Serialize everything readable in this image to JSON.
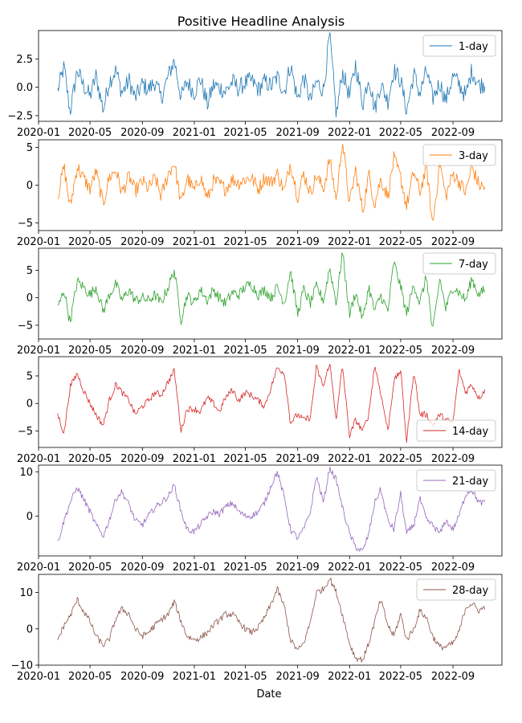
{
  "chart_data": {
    "type": "line",
    "title": "Positive Headline Analysis",
    "xlabel": "Date",
    "x_start": "2020-02-15",
    "x_end": "2022-11-15",
    "x_ticks": [
      "2020-01",
      "2020-05",
      "2020-09",
      "2021-01",
      "2021-05",
      "2021-09",
      "2022-01",
      "2022-05",
      "2022-09"
    ],
    "panels": [
      {
        "name": "1-day",
        "color": "#1f77b4",
        "ylim": [
          -3.0,
          5.0
        ],
        "y_ticks": [
          -2.5,
          0.0,
          2.5
        ],
        "y_tick_labels": [
          "−2.5",
          "0.0",
          "2.5"
        ],
        "legend": "top-right",
        "x": [
          "2020-02-15",
          "2020-03-01",
          "2020-03-15",
          "2020-04-01",
          "2020-04-15",
          "2020-05-01",
          "2020-05-15",
          "2020-06-01",
          "2020-06-15",
          "2020-07-01",
          "2020-07-15",
          "2020-08-01",
          "2020-08-15",
          "2020-09-01",
          "2020-09-15",
          "2020-10-01",
          "2020-10-15",
          "2020-11-01",
          "2020-11-15",
          "2020-12-01",
          "2020-12-15",
          "2021-01-01",
          "2021-01-15",
          "2021-02-01",
          "2021-02-15",
          "2021-03-01",
          "2021-03-15",
          "2021-04-01",
          "2021-04-15",
          "2021-05-01",
          "2021-05-15",
          "2021-06-01",
          "2021-06-15",
          "2021-07-01",
          "2021-07-15",
          "2021-08-01",
          "2021-08-15",
          "2021-09-01",
          "2021-09-15",
          "2021-10-01",
          "2021-10-15",
          "2021-11-01",
          "2021-11-15",
          "2021-12-01",
          "2021-12-15",
          "2022-01-01",
          "2022-01-15",
          "2022-02-01",
          "2022-02-15",
          "2022-03-01",
          "2022-03-15",
          "2022-04-01",
          "2022-04-15",
          "2022-05-01",
          "2022-05-15",
          "2022-06-01",
          "2022-06-15",
          "2022-07-01",
          "2022-07-15",
          "2022-08-01",
          "2022-08-15",
          "2022-09-01",
          "2022-09-15",
          "2022-10-01",
          "2022-10-15",
          "2022-11-01",
          "2022-11-15"
        ],
        "values": [
          -0.3,
          1.8,
          -2.2,
          1.5,
          0.2,
          -0.8,
          1.0,
          -2.0,
          0.5,
          1.5,
          -0.5,
          0.6,
          -1.0,
          0.3,
          -0.2,
          0.5,
          -1.0,
          1.0,
          2.4,
          -0.9,
          0.5,
          -0.5,
          0.8,
          -1.5,
          0.2,
          0.0,
          -0.4,
          0.5,
          -0.1,
          0.4,
          0.6,
          -0.2,
          0.5,
          0.1,
          0.9,
          -0.4,
          2.0,
          -1.1,
          0.9,
          -1.2,
          0.5,
          -0.3,
          4.7,
          -2.5,
          1.4,
          -0.8,
          2.0,
          -1.5,
          1.0,
          -2.0,
          0.3,
          -1.2,
          1.5,
          0.6,
          -2.1,
          1.2,
          -0.6,
          1.5,
          -1.0,
          0.4,
          -1.2,
          1.0,
          0.3,
          -0.8,
          1.5,
          0.2,
          0.3
        ]
      },
      {
        "name": "3-day",
        "color": "#ff7f0e",
        "ylim": [
          -6.0,
          6.0
        ],
        "y_ticks": [
          -5,
          0,
          5
        ],
        "y_tick_labels": [
          "−5",
          "0",
          "5"
        ],
        "legend": "top-right",
        "x": [
          "2020-02-15",
          "2020-03-01",
          "2020-03-15",
          "2020-04-01",
          "2020-04-15",
          "2020-05-01",
          "2020-05-15",
          "2020-06-01",
          "2020-06-15",
          "2020-07-01",
          "2020-07-15",
          "2020-08-01",
          "2020-08-15",
          "2020-09-01",
          "2020-09-15",
          "2020-10-01",
          "2020-10-15",
          "2020-11-01",
          "2020-11-15",
          "2020-12-01",
          "2020-12-15",
          "2021-01-01",
          "2021-01-15",
          "2021-02-01",
          "2021-02-15",
          "2021-03-01",
          "2021-03-15",
          "2021-04-01",
          "2021-04-15",
          "2021-05-01",
          "2021-05-15",
          "2021-06-01",
          "2021-06-15",
          "2021-07-01",
          "2021-07-15",
          "2021-08-01",
          "2021-08-15",
          "2021-09-01",
          "2021-09-15",
          "2021-10-01",
          "2021-10-15",
          "2021-11-01",
          "2021-11-15",
          "2021-12-01",
          "2021-12-15",
          "2022-01-01",
          "2022-01-15",
          "2022-02-01",
          "2022-02-15",
          "2022-03-01",
          "2022-03-15",
          "2022-04-01",
          "2022-04-15",
          "2022-05-01",
          "2022-05-15",
          "2022-06-01",
          "2022-06-15",
          "2022-07-01",
          "2022-07-15",
          "2022-08-01",
          "2022-08-15",
          "2022-09-01",
          "2022-09-15",
          "2022-10-01",
          "2022-10-15",
          "2022-11-01",
          "2022-11-15"
        ],
        "values": [
          -1.5,
          2.5,
          -3.0,
          2.5,
          1.0,
          -0.5,
          1.8,
          -2.5,
          1.0,
          2.0,
          -1.0,
          1.2,
          -0.8,
          0.5,
          -0.5,
          1.0,
          -1.5,
          1.5,
          3.0,
          -2.5,
          1.0,
          -0.8,
          1.2,
          -1.8,
          0.5,
          0.2,
          -0.5,
          0.8,
          0.3,
          0.8,
          1.0,
          -0.5,
          1.0,
          0.4,
          1.5,
          -0.8,
          3.0,
          -1.5,
          1.5,
          -1.0,
          1.2,
          -0.5,
          3.5,
          -2.0,
          6.0,
          -2.5,
          2.0,
          -3.5,
          1.5,
          -2.5,
          0.8,
          -1.5,
          3.5,
          1.0,
          -2.8,
          1.8,
          -1.0,
          2.5,
          -5.3,
          3.0,
          -1.5,
          1.5,
          0.5,
          -1.0,
          2.5,
          0.0,
          -0.3
        ]
      },
      {
        "name": "7-day",
        "color": "#2ca02c",
        "ylim": [
          -7.5,
          9.0
        ],
        "y_ticks": [
          -5,
          0,
          5
        ],
        "y_tick_labels": [
          "−5",
          "0",
          "5"
        ],
        "legend": "top-right",
        "x": [
          "2020-02-15",
          "2020-03-01",
          "2020-03-15",
          "2020-04-01",
          "2020-04-15",
          "2020-05-01",
          "2020-05-15",
          "2020-06-01",
          "2020-06-15",
          "2020-07-01",
          "2020-07-15",
          "2020-08-01",
          "2020-08-15",
          "2020-09-01",
          "2020-09-15",
          "2020-10-01",
          "2020-10-15",
          "2020-11-01",
          "2020-11-15",
          "2020-12-01",
          "2020-12-15",
          "2021-01-01",
          "2021-01-15",
          "2021-02-01",
          "2021-02-15",
          "2021-03-01",
          "2021-03-15",
          "2021-04-01",
          "2021-04-15",
          "2021-05-01",
          "2021-05-15",
          "2021-06-01",
          "2021-06-15",
          "2021-07-01",
          "2021-07-15",
          "2021-08-01",
          "2021-08-15",
          "2021-09-01",
          "2021-09-15",
          "2021-10-01",
          "2021-10-15",
          "2021-11-01",
          "2021-11-15",
          "2021-12-01",
          "2021-12-15",
          "2022-01-01",
          "2022-01-15",
          "2022-02-01",
          "2022-02-15",
          "2022-03-01",
          "2022-03-15",
          "2022-04-01",
          "2022-04-15",
          "2022-05-01",
          "2022-05-15",
          "2022-06-01",
          "2022-06-15",
          "2022-07-01",
          "2022-07-15",
          "2022-08-01",
          "2022-08-15",
          "2022-09-01",
          "2022-09-15",
          "2022-10-01",
          "2022-10-15",
          "2022-11-01",
          "2022-11-15"
        ],
        "values": [
          -2.0,
          1.5,
          -4.5,
          3.0,
          2.0,
          0.5,
          2.0,
          -2.5,
          0.5,
          2.5,
          -0.5,
          1.5,
          -0.5,
          0.0,
          -0.5,
          0.5,
          -1.0,
          2.0,
          5.0,
          -4.0,
          0.5,
          -1.0,
          1.5,
          -0.5,
          1.5,
          0.0,
          -1.0,
          1.0,
          0.5,
          2.0,
          2.5,
          0.5,
          1.5,
          0.0,
          2.0,
          -1.0,
          5.0,
          -3.0,
          1.5,
          -1.0,
          2.0,
          -0.5,
          5.5,
          -1.0,
          8.5,
          -3.0,
          1.0,
          -4.0,
          2.0,
          -2.5,
          0.5,
          -2.5,
          6.5,
          2.0,
          -3.0,
          2.5,
          -1.0,
          4.0,
          -6.5,
          3.5,
          -2.0,
          2.0,
          1.0,
          -0.5,
          3.5,
          0.5,
          1.5
        ]
      },
      {
        "name": "14-day",
        "color": "#d62728",
        "ylim": [
          -8.0,
          8.5
        ],
        "y_ticks": [
          -5,
          0,
          5
        ],
        "y_tick_labels": [
          "−5",
          "0",
          "5"
        ],
        "legend": "bottom-right",
        "x": [
          "2020-02-15",
          "2020-03-01",
          "2020-03-15",
          "2020-04-01",
          "2020-04-15",
          "2020-05-01",
          "2020-05-15",
          "2020-06-01",
          "2020-06-15",
          "2020-07-01",
          "2020-07-15",
          "2020-08-01",
          "2020-08-15",
          "2020-09-01",
          "2020-09-15",
          "2020-10-01",
          "2020-10-15",
          "2020-11-01",
          "2020-11-15",
          "2020-12-01",
          "2020-12-15",
          "2021-01-01",
          "2021-01-15",
          "2021-02-01",
          "2021-02-15",
          "2021-03-01",
          "2021-03-15",
          "2021-04-01",
          "2021-04-15",
          "2021-05-01",
          "2021-05-15",
          "2021-06-01",
          "2021-06-15",
          "2021-07-01",
          "2021-07-15",
          "2021-08-01",
          "2021-08-15",
          "2021-09-01",
          "2021-09-15",
          "2021-10-01",
          "2021-10-15",
          "2021-11-01",
          "2021-11-15",
          "2021-12-01",
          "2021-12-15",
          "2022-01-01",
          "2022-01-15",
          "2022-02-01",
          "2022-02-15",
          "2022-03-01",
          "2022-03-15",
          "2022-04-01",
          "2022-04-15",
          "2022-05-01",
          "2022-05-15",
          "2022-06-01",
          "2022-06-15",
          "2022-07-01",
          "2022-07-15",
          "2022-08-01",
          "2022-08-15",
          "2022-09-01",
          "2022-09-15",
          "2022-10-01",
          "2022-10-15",
          "2022-11-01",
          "2022-11-15"
        ],
        "values": [
          -2.0,
          -5.5,
          3.0,
          5.5,
          2.5,
          0.0,
          -2.0,
          -4.0,
          0.5,
          3.5,
          2.0,
          0.5,
          -2.0,
          -0.5,
          0.5,
          2.0,
          1.5,
          4.0,
          6.0,
          -5.0,
          -1.0,
          -1.0,
          -1.5,
          1.0,
          0.0,
          -1.5,
          1.0,
          2.5,
          0.5,
          2.0,
          1.5,
          0.5,
          -0.5,
          3.0,
          6.5,
          5.5,
          -3.5,
          -2.0,
          -3.0,
          -2.5,
          6.5,
          3.0,
          7.5,
          -3.0,
          7.0,
          -6.0,
          -3.0,
          -5.0,
          -2.0,
          7.0,
          2.0,
          -5.0,
          4.0,
          6.0,
          -7.0,
          6.0,
          -2.0,
          -2.0,
          -4.0,
          -2.0,
          -3.0,
          -3.5,
          6.0,
          2.0,
          3.5,
          1.0,
          2.5
        ]
      },
      {
        "name": "21-day",
        "color": "#9467bd",
        "ylim": [
          -9.0,
          11.5
        ],
        "y_ticks": [
          0,
          10
        ],
        "y_tick_labels": [
          "0",
          "10"
        ],
        "legend": "top-right",
        "x": [
          "2020-02-15",
          "2020-03-01",
          "2020-03-15",
          "2020-04-01",
          "2020-04-15",
          "2020-05-01",
          "2020-05-15",
          "2020-06-01",
          "2020-06-15",
          "2020-07-01",
          "2020-07-15",
          "2020-08-01",
          "2020-08-15",
          "2020-09-01",
          "2020-09-15",
          "2020-10-01",
          "2020-10-15",
          "2020-11-01",
          "2020-11-15",
          "2020-12-01",
          "2020-12-15",
          "2021-01-01",
          "2021-01-15",
          "2021-02-01",
          "2021-02-15",
          "2021-03-01",
          "2021-03-15",
          "2021-04-01",
          "2021-04-15",
          "2021-05-01",
          "2021-05-15",
          "2021-06-01",
          "2021-06-15",
          "2021-07-01",
          "2021-07-15",
          "2021-08-01",
          "2021-08-15",
          "2021-09-01",
          "2021-09-15",
          "2021-10-01",
          "2021-10-15",
          "2021-11-01",
          "2021-11-15",
          "2021-12-01",
          "2021-12-15",
          "2022-01-01",
          "2022-01-15",
          "2022-02-01",
          "2022-02-15",
          "2022-03-01",
          "2022-03-15",
          "2022-04-01",
          "2022-04-15",
          "2022-05-01",
          "2022-05-15",
          "2022-06-01",
          "2022-06-15",
          "2022-07-01",
          "2022-07-15",
          "2022-08-01",
          "2022-08-15",
          "2022-09-01",
          "2022-09-15",
          "2022-10-01",
          "2022-10-15",
          "2022-11-01",
          "2022-11-15"
        ],
        "values": [
          -6.0,
          -1.0,
          3.0,
          6.5,
          4.0,
          1.0,
          -2.0,
          -4.5,
          -1.0,
          4.0,
          5.5,
          2.5,
          -1.0,
          -2.0,
          0.0,
          2.0,
          3.0,
          4.5,
          7.0,
          1.0,
          -3.0,
          -3.5,
          -2.0,
          0.0,
          1.0,
          0.5,
          2.0,
          3.0,
          1.0,
          0.0,
          0.0,
          1.0,
          3.0,
          7.0,
          10.0,
          4.0,
          -3.0,
          -5.0,
          -3.0,
          1.0,
          9.0,
          3.0,
          11.0,
          8.0,
          2.0,
          -4.0,
          -7.0,
          -8.0,
          -4.0,
          3.0,
          6.0,
          -1.0,
          -3.0,
          5.0,
          -4.0,
          -2.0,
          4.0,
          -1.0,
          -2.0,
          -4.0,
          -1.0,
          -3.0,
          0.0,
          5.0,
          6.0,
          3.0,
          3.0
        ]
      },
      {
        "name": "28-day",
        "color": "#8c564b",
        "ylim": [
          -10.0,
          15.0
        ],
        "y_ticks": [
          -10,
          0,
          10
        ],
        "y_tick_labels": [
          "−10",
          "0",
          "10"
        ],
        "legend": "top-right",
        "x": [
          "2020-02-15",
          "2020-03-01",
          "2020-03-15",
          "2020-04-01",
          "2020-04-15",
          "2020-05-01",
          "2020-05-15",
          "2020-06-01",
          "2020-06-15",
          "2020-07-01",
          "2020-07-15",
          "2020-08-01",
          "2020-08-15",
          "2020-09-01",
          "2020-09-15",
          "2020-10-01",
          "2020-10-15",
          "2020-11-01",
          "2020-11-15",
          "2020-12-01",
          "2020-12-15",
          "2021-01-01",
          "2021-01-15",
          "2021-02-01",
          "2021-02-15",
          "2021-03-01",
          "2021-03-15",
          "2021-04-01",
          "2021-04-15",
          "2021-05-01",
          "2021-05-15",
          "2021-06-01",
          "2021-06-15",
          "2021-07-01",
          "2021-07-15",
          "2021-08-01",
          "2021-08-15",
          "2021-09-01",
          "2021-09-15",
          "2021-10-01",
          "2021-10-15",
          "2021-11-01",
          "2021-11-15",
          "2021-12-01",
          "2021-12-15",
          "2022-01-01",
          "2022-01-15",
          "2022-02-01",
          "2022-02-15",
          "2022-03-01",
          "2022-03-15",
          "2022-04-01",
          "2022-04-15",
          "2022-05-01",
          "2022-05-15",
          "2022-06-01",
          "2022-06-15",
          "2022-07-01",
          "2022-07-15",
          "2022-08-01",
          "2022-08-15",
          "2022-09-01",
          "2022-09-15",
          "2022-10-01",
          "2022-10-15",
          "2022-11-01",
          "2022-11-15"
        ],
        "values": [
          -3.0,
          1.0,
          3.5,
          8.0,
          5.0,
          2.0,
          -2.0,
          -4.5,
          -3.0,
          3.0,
          5.5,
          4.0,
          0.0,
          -2.0,
          -1.0,
          1.0,
          2.5,
          4.0,
          7.5,
          2.0,
          -2.0,
          -3.0,
          -2.5,
          -1.0,
          1.0,
          2.5,
          4.0,
          4.0,
          2.0,
          0.0,
          -1.0,
          0.5,
          3.0,
          7.0,
          11.0,
          6.0,
          -3.0,
          -6.0,
          -4.0,
          2.0,
          10.0,
          11.0,
          14.0,
          10.0,
          4.0,
          -4.0,
          -8.0,
          -8.5,
          -4.0,
          2.0,
          8.0,
          1.0,
          -2.0,
          4.0,
          -3.0,
          0.0,
          5.0,
          3.0,
          -2.0,
          -5.0,
          -5.0,
          -4.0,
          -1.0,
          6.0,
          7.0,
          5.0,
          6.0
        ]
      }
    ]
  }
}
